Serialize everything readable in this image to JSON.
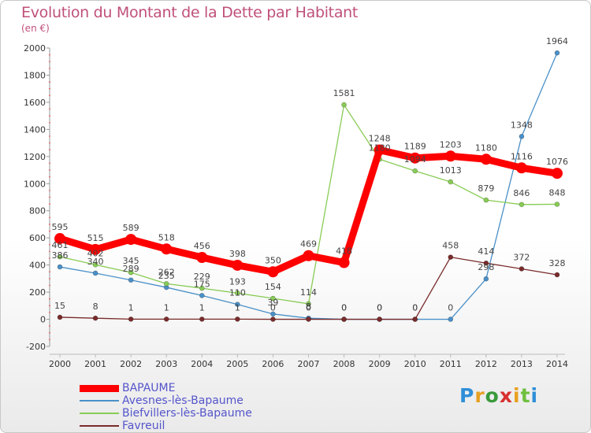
{
  "header": {
    "title": "Evolution du Montant de la Dette par Habitant",
    "subtitle": "(en €)"
  },
  "logo": {
    "letters": [
      "P",
      "r",
      "o",
      "x",
      "i",
      "t",
      "i"
    ],
    "colors": [
      "#2f8fd8",
      "#e8a020",
      "#3a9a3a",
      "#d8302f",
      "#e8a020",
      "#6fbf3f",
      "#2f8fd8"
    ]
  },
  "chart_data": {
    "type": "line",
    "title": "Evolution du Montant de la Dette par Habitant",
    "subtitle": "(en €)",
    "xlabel": "",
    "ylabel": "",
    "x": [
      "2000",
      "2001",
      "2002",
      "2003",
      "2004",
      "2005",
      "2006",
      "2007",
      "2008",
      "2009",
      "2010",
      "2011",
      "2012",
      "2013",
      "2014"
    ],
    "ylim": [
      -200,
      2000
    ],
    "yticks": [
      "-200",
      "0",
      "200",
      "400",
      "600",
      "800",
      "1000",
      "1200",
      "1400",
      "1600",
      "1800",
      "2000"
    ],
    "ytick_values": [
      -200,
      0,
      200,
      400,
      600,
      800,
      1000,
      1200,
      1400,
      1600,
      1800,
      2000
    ],
    "grid": false,
    "legend_position": "bottom-left",
    "series": [
      {
        "name": "BAPAUME",
        "color": "#ff0000",
        "values": [
          595,
          515,
          589,
          518,
          456,
          398,
          350,
          469,
          418,
          1248,
          1189,
          1203,
          1180,
          1116,
          1076
        ],
        "labels": [
          "595",
          "515",
          "589",
          "518",
          "456",
          "398",
          "350",
          "469",
          "418",
          "1248",
          "1189",
          "1203",
          "1180",
          "1116",
          "1076"
        ]
      },
      {
        "name": "Avesnes-lès-Bapaume",
        "color": "#4a90c8",
        "values": [
          386,
          340,
          289,
          235,
          175,
          110,
          39,
          8,
          0,
          0,
          0,
          0,
          298,
          1348,
          1964
        ],
        "labels": [
          "386",
          "340",
          "289",
          "235",
          "175",
          "110",
          "39",
          "8",
          "0",
          "0",
          "0",
          "0",
          "298",
          "1348",
          "1964"
        ]
      },
      {
        "name": "Biefvillers-lès-Bapaume",
        "color": "#88cc55",
        "values": [
          461,
          402,
          345,
          262,
          229,
          193,
          154,
          114,
          1581,
          1180,
          1094,
          1013,
          879,
          846,
          848
        ],
        "labels": [
          "461",
          "402",
          "345",
          "262",
          "229",
          "193",
          "154",
          "114",
          "1581",
          "1180",
          "1094",
          "1013",
          "879",
          "846",
          "848"
        ]
      },
      {
        "name": "Favreuil",
        "color": "#7a2a2a",
        "values": [
          15,
          8,
          1,
          1,
          1,
          1,
          0,
          0,
          0,
          0,
          0,
          458,
          414,
          372,
          328
        ],
        "labels": [
          "15",
          "8",
          "1",
          "1",
          "1",
          "1",
          "0",
          "0",
          "0",
          "0",
          "0",
          "458",
          "414",
          "372",
          "328"
        ]
      }
    ]
  }
}
